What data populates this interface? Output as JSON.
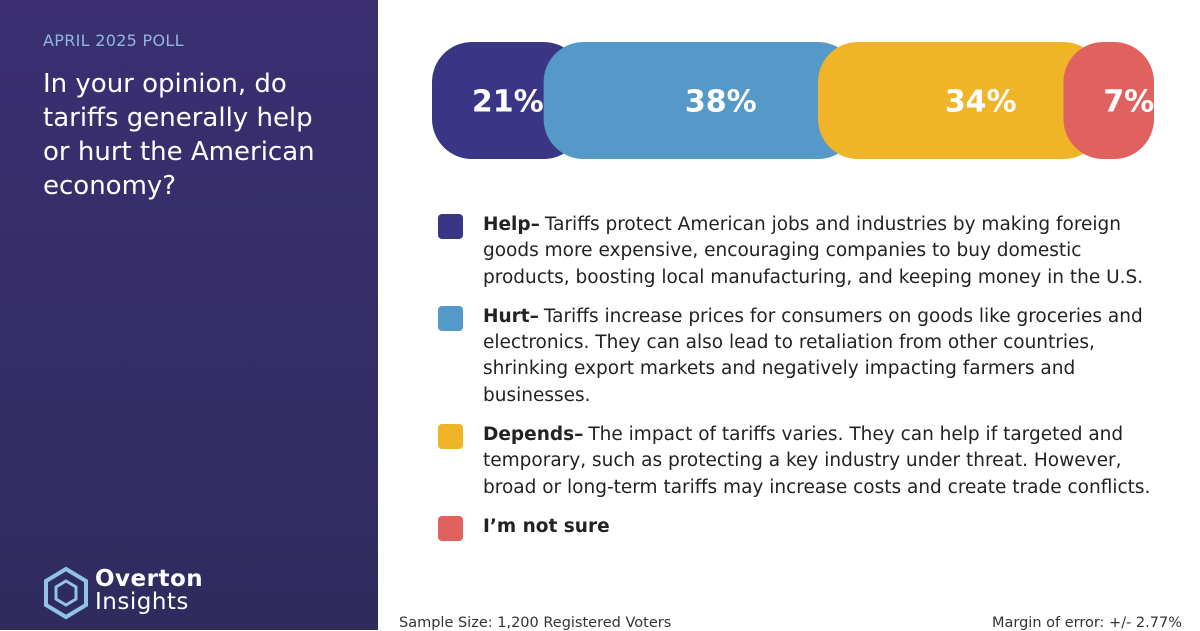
{
  "chart_data": {
    "type": "stacked-bar",
    "kicker": "APRIL 2025 POLL",
    "title": "In your opinion, do tariffs generally help or hurt the American economy?",
    "series": [
      {
        "name": "Help–",
        "color": "#3b3585",
        "values": [
          21
        ],
        "value_labels": [
          "21%"
        ],
        "description": "Tariffs protect American jobs and industries by making foreign goods more expensive, encouraging companies to buy domestic products, boosting local manufacturing, and keeping money in the U.S."
      },
      {
        "name": "Hurt–",
        "color": "#5499c7",
        "values": [
          38
        ],
        "value_labels": [
          "38%"
        ],
        "description": "Tariffs increase prices for consumers on goods like groceries and electronics. They can also lead to retaliation from other countries, shrinking export markets and negatively impacting farmers and businesses."
      },
      {
        "name": "Depends–",
        "color": "#f0b429",
        "values": [
          34
        ],
        "value_labels": [
          "34%"
        ],
        "description": "The impact of tariffs varies. They can help if targeted and temporary, such as protecting a key industry under threat. However, broad or long-term tariffs may increase costs and create trade conflicts."
      },
      {
        "name": "I’m not sure",
        "color": "#e0625f",
        "values": [
          7
        ],
        "value_labels": [
          "7%"
        ]
      }
    ],
    "brand": [
      "Overton",
      "Insights"
    ],
    "footnote_left": "Sample Size: 1,200 Registered Voters",
    "footnote_right": "Margin of error: +/- 2.77%"
  }
}
